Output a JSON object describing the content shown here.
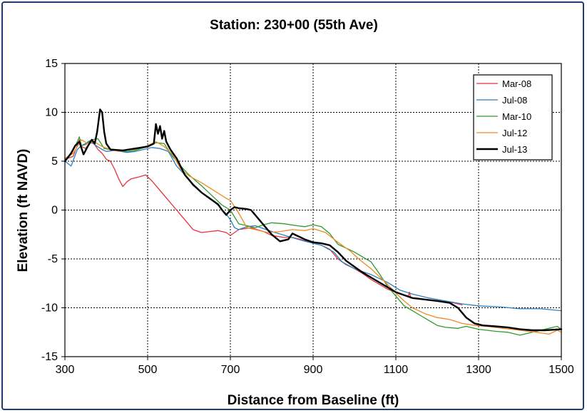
{
  "chart_data": {
    "type": "line",
    "title": "Station: 230+00 (55th Ave)",
    "xlabel": "Distance from Baseline (ft)",
    "ylabel": "Elevation (ft NAVD)",
    "xlim": [
      300,
      1500
    ],
    "ylim": [
      -15,
      15
    ],
    "xticks": [
      300,
      500,
      700,
      900,
      1100,
      1300,
      1500
    ],
    "yticks": [
      15,
      10,
      5,
      0,
      -5,
      -10,
      -15
    ],
    "grid": true,
    "legend_position": "top-right",
    "series": [
      {
        "name": "Mar-08",
        "color": "#e8323c",
        "width": 1.3,
        "points": [
          [
            300,
            5.2
          ],
          [
            320,
            5.5
          ],
          [
            335,
            7.2
          ],
          [
            340,
            6.5
          ],
          [
            350,
            6.3
          ],
          [
            360,
            6.9
          ],
          [
            370,
            6.8
          ],
          [
            380,
            6.2
          ],
          [
            390,
            5.8
          ],
          [
            400,
            5.2
          ],
          [
            410,
            5.0
          ],
          [
            420,
            4.2
          ],
          [
            430,
            3.2
          ],
          [
            440,
            2.4
          ],
          [
            450,
            2.9
          ],
          [
            460,
            3.2
          ],
          [
            480,
            3.4
          ],
          [
            495,
            3.6
          ],
          [
            510,
            3.0
          ],
          [
            530,
            2.0
          ],
          [
            550,
            1.0
          ],
          [
            570,
            0.0
          ],
          [
            590,
            -1.0
          ],
          [
            610,
            -2.0
          ],
          [
            630,
            -2.3
          ],
          [
            650,
            -2.2
          ],
          [
            670,
            -2.1
          ],
          [
            690,
            -2.3
          ],
          [
            700,
            -2.6
          ],
          [
            720,
            -2.0
          ],
          [
            750,
            -1.8
          ],
          [
            780,
            -2.2
          ],
          [
            800,
            -2.6
          ],
          [
            830,
            -2.8
          ],
          [
            850,
            -2.8
          ],
          [
            870,
            -3.0
          ],
          [
            900,
            -3.4
          ],
          [
            920,
            -3.6
          ],
          [
            940,
            -4.0
          ],
          [
            960,
            -5.0
          ],
          [
            980,
            -5.6
          ],
          [
            1000,
            -6.0
          ],
          [
            1020,
            -6.5
          ],
          [
            1040,
            -7.1
          ],
          [
            1060,
            -7.6
          ],
          [
            1080,
            -8.1
          ],
          [
            1100,
            -8.4
          ],
          [
            1130,
            -8.8
          ],
          [
            1133,
            -8.4
          ],
          [
            1136,
            -9.0
          ],
          [
            1150,
            -9.0
          ],
          [
            1200,
            -9.3
          ],
          [
            1240,
            -9.5
          ],
          [
            1260,
            -9.7
          ]
        ]
      },
      {
        "name": "Jul-08",
        "color": "#2b7fc0",
        "width": 1.3,
        "points": [
          [
            300,
            5.0
          ],
          [
            315,
            4.5
          ],
          [
            330,
            6.2
          ],
          [
            340,
            6.6
          ],
          [
            350,
            6.8
          ],
          [
            360,
            7.1
          ],
          [
            375,
            6.6
          ],
          [
            390,
            6.2
          ],
          [
            400,
            6.0
          ],
          [
            420,
            6.1
          ],
          [
            450,
            5.9
          ],
          [
            470,
            6.0
          ],
          [
            490,
            6.2
          ],
          [
            510,
            6.4
          ],
          [
            530,
            6.3
          ],
          [
            550,
            6.0
          ],
          [
            570,
            4.5
          ],
          [
            590,
            3.6
          ],
          [
            610,
            2.5
          ],
          [
            640,
            1.5
          ],
          [
            670,
            0.5
          ],
          [
            690,
            -0.4
          ],
          [
            700,
            -1.0
          ],
          [
            710,
            -1.8
          ],
          [
            720,
            -2.0
          ],
          [
            740,
            -1.7
          ],
          [
            760,
            -1.6
          ],
          [
            800,
            -2.2
          ],
          [
            840,
            -2.7
          ],
          [
            880,
            -3.2
          ],
          [
            920,
            -3.6
          ],
          [
            950,
            -4.3
          ],
          [
            970,
            -5.3
          ],
          [
            1000,
            -6.0
          ],
          [
            1040,
            -6.6
          ],
          [
            1080,
            -7.4
          ],
          [
            1110,
            -8.2
          ],
          [
            1140,
            -8.6
          ],
          [
            1180,
            -9.0
          ],
          [
            1220,
            -9.3
          ],
          [
            1260,
            -9.6
          ],
          [
            1300,
            -9.8
          ],
          [
            1350,
            -9.9
          ],
          [
            1400,
            -10.1
          ],
          [
            1450,
            -10.1
          ],
          [
            1500,
            -10.3
          ]
        ]
      },
      {
        "name": "Mar-10",
        "color": "#2e9a2e",
        "width": 1.3,
        "points": [
          [
            300,
            5.0
          ],
          [
            325,
            6.5
          ],
          [
            335,
            7.5
          ],
          [
            340,
            6.6
          ],
          [
            350,
            6.7
          ],
          [
            365,
            7.2
          ],
          [
            380,
            7.3
          ],
          [
            395,
            6.3
          ],
          [
            410,
            6.2
          ],
          [
            430,
            6.1
          ],
          [
            450,
            6.0
          ],
          [
            470,
            6.1
          ],
          [
            500,
            6.5
          ],
          [
            520,
            6.9
          ],
          [
            540,
            6.8
          ],
          [
            560,
            5.5
          ],
          [
            580,
            4.5
          ],
          [
            600,
            3.6
          ],
          [
            630,
            2.5
          ],
          [
            660,
            1.3
          ],
          [
            680,
            0.5
          ],
          [
            700,
            0.0
          ],
          [
            720,
            -1.4
          ],
          [
            740,
            -1.6
          ],
          [
            760,
            -1.8
          ],
          [
            780,
            -1.5
          ],
          [
            800,
            -1.3
          ],
          [
            830,
            -1.4
          ],
          [
            860,
            -1.6
          ],
          [
            880,
            -1.7
          ],
          [
            900,
            -1.5
          ],
          [
            920,
            -1.7
          ],
          [
            940,
            -2.4
          ],
          [
            960,
            -3.5
          ],
          [
            980,
            -3.9
          ],
          [
            1000,
            -4.3
          ],
          [
            1020,
            -4.8
          ],
          [
            1040,
            -5.3
          ],
          [
            1060,
            -6.5
          ],
          [
            1080,
            -7.8
          ],
          [
            1100,
            -8.8
          ],
          [
            1120,
            -9.8
          ],
          [
            1140,
            -10.3
          ],
          [
            1160,
            -10.8
          ],
          [
            1180,
            -11.3
          ],
          [
            1200,
            -11.8
          ],
          [
            1220,
            -12.0
          ],
          [
            1250,
            -12.1
          ],
          [
            1270,
            -11.9
          ],
          [
            1300,
            -12.2
          ],
          [
            1340,
            -12.4
          ],
          [
            1370,
            -12.5
          ],
          [
            1400,
            -12.8
          ],
          [
            1430,
            -12.5
          ],
          [
            1460,
            -12.2
          ],
          [
            1490,
            -11.9
          ],
          [
            1500,
            -12.2
          ]
        ]
      },
      {
        "name": "Jul-12",
        "color": "#f08a24",
        "width": 1.3,
        "points": [
          [
            300,
            5.3
          ],
          [
            320,
            5.8
          ],
          [
            340,
            7.2
          ],
          [
            355,
            6.8
          ],
          [
            370,
            7.0
          ],
          [
            390,
            6.5
          ],
          [
            410,
            6.2
          ],
          [
            430,
            6.0
          ],
          [
            450,
            6.2
          ],
          [
            470,
            6.2
          ],
          [
            500,
            6.6
          ],
          [
            520,
            7.0
          ],
          [
            540,
            6.5
          ],
          [
            560,
            5.7
          ],
          [
            580,
            4.2
          ],
          [
            600,
            3.5
          ],
          [
            630,
            2.8
          ],
          [
            660,
            2.0
          ],
          [
            690,
            1.2
          ],
          [
            700,
            1.0
          ],
          [
            720,
            -0.3
          ],
          [
            740,
            -1.8
          ],
          [
            760,
            -2.0
          ],
          [
            790,
            -2.3
          ],
          [
            820,
            -2.2
          ],
          [
            850,
            -2.0
          ],
          [
            880,
            -2.1
          ],
          [
            900,
            -1.9
          ],
          [
            930,
            -2.3
          ],
          [
            960,
            -3.3
          ],
          [
            990,
            -4.2
          ],
          [
            1010,
            -5.0
          ],
          [
            1040,
            -6.0
          ],
          [
            1060,
            -6.8
          ],
          [
            1080,
            -7.6
          ],
          [
            1100,
            -8.5
          ],
          [
            1120,
            -9.3
          ],
          [
            1140,
            -10.0
          ],
          [
            1170,
            -10.6
          ],
          [
            1200,
            -11.0
          ],
          [
            1230,
            -11.2
          ],
          [
            1260,
            -11.6
          ],
          [
            1290,
            -11.8
          ],
          [
            1320,
            -11.9
          ],
          [
            1360,
            -12.1
          ],
          [
            1400,
            -12.3
          ],
          [
            1440,
            -12.5
          ],
          [
            1470,
            -12.7
          ],
          [
            1490,
            -12.3
          ],
          [
            1500,
            -12.5
          ]
        ]
      },
      {
        "name": "Jul-13",
        "color": "#000000",
        "width": 2.4,
        "points": [
          [
            300,
            5.0
          ],
          [
            315,
            5.8
          ],
          [
            325,
            6.6
          ],
          [
            335,
            7.0
          ],
          [
            345,
            5.7
          ],
          [
            355,
            6.5
          ],
          [
            365,
            7.2
          ],
          [
            372,
            6.8
          ],
          [
            378,
            8.0
          ],
          [
            385,
            10.3
          ],
          [
            390,
            10.0
          ],
          [
            395,
            8.0
          ],
          [
            400,
            6.8
          ],
          [
            410,
            6.2
          ],
          [
            440,
            6.1
          ],
          [
            470,
            6.3
          ],
          [
            500,
            6.5
          ],
          [
            515,
            6.8
          ],
          [
            520,
            8.8
          ],
          [
            525,
            7.8
          ],
          [
            530,
            8.6
          ],
          [
            535,
            7.3
          ],
          [
            540,
            8.1
          ],
          [
            545,
            7.0
          ],
          [
            555,
            6.2
          ],
          [
            570,
            5.3
          ],
          [
            590,
            3.6
          ],
          [
            610,
            2.6
          ],
          [
            630,
            1.8
          ],
          [
            650,
            1.2
          ],
          [
            670,
            0.6
          ],
          [
            680,
            0.0
          ],
          [
            690,
            -0.5
          ],
          [
            700,
            0.0
          ],
          [
            710,
            0.3
          ],
          [
            720,
            0.2
          ],
          [
            740,
            0.1
          ],
          [
            750,
            0.0
          ],
          [
            760,
            -0.5
          ],
          [
            780,
            -1.5
          ],
          [
            800,
            -2.5
          ],
          [
            820,
            -3.2
          ],
          [
            840,
            -3.0
          ],
          [
            850,
            -2.4
          ],
          [
            860,
            -2.6
          ],
          [
            880,
            -3.0
          ],
          [
            900,
            -3.3
          ],
          [
            920,
            -3.4
          ],
          [
            940,
            -3.6
          ],
          [
            960,
            -4.3
          ],
          [
            980,
            -5.2
          ],
          [
            1000,
            -5.8
          ],
          [
            1020,
            -6.4
          ],
          [
            1040,
            -6.9
          ],
          [
            1060,
            -7.4
          ],
          [
            1080,
            -7.9
          ],
          [
            1100,
            -8.4
          ],
          [
            1120,
            -8.7
          ],
          [
            1140,
            -9.0
          ],
          [
            1160,
            -9.1
          ],
          [
            1200,
            -9.3
          ],
          [
            1230,
            -9.5
          ],
          [
            1250,
            -10.0
          ],
          [
            1270,
            -11.0
          ],
          [
            1290,
            -11.6
          ],
          [
            1310,
            -11.8
          ],
          [
            1340,
            -11.9
          ],
          [
            1370,
            -12.0
          ],
          [
            1400,
            -12.2
          ],
          [
            1430,
            -12.3
          ],
          [
            1460,
            -12.3
          ],
          [
            1500,
            -12.2
          ]
        ]
      }
    ]
  }
}
